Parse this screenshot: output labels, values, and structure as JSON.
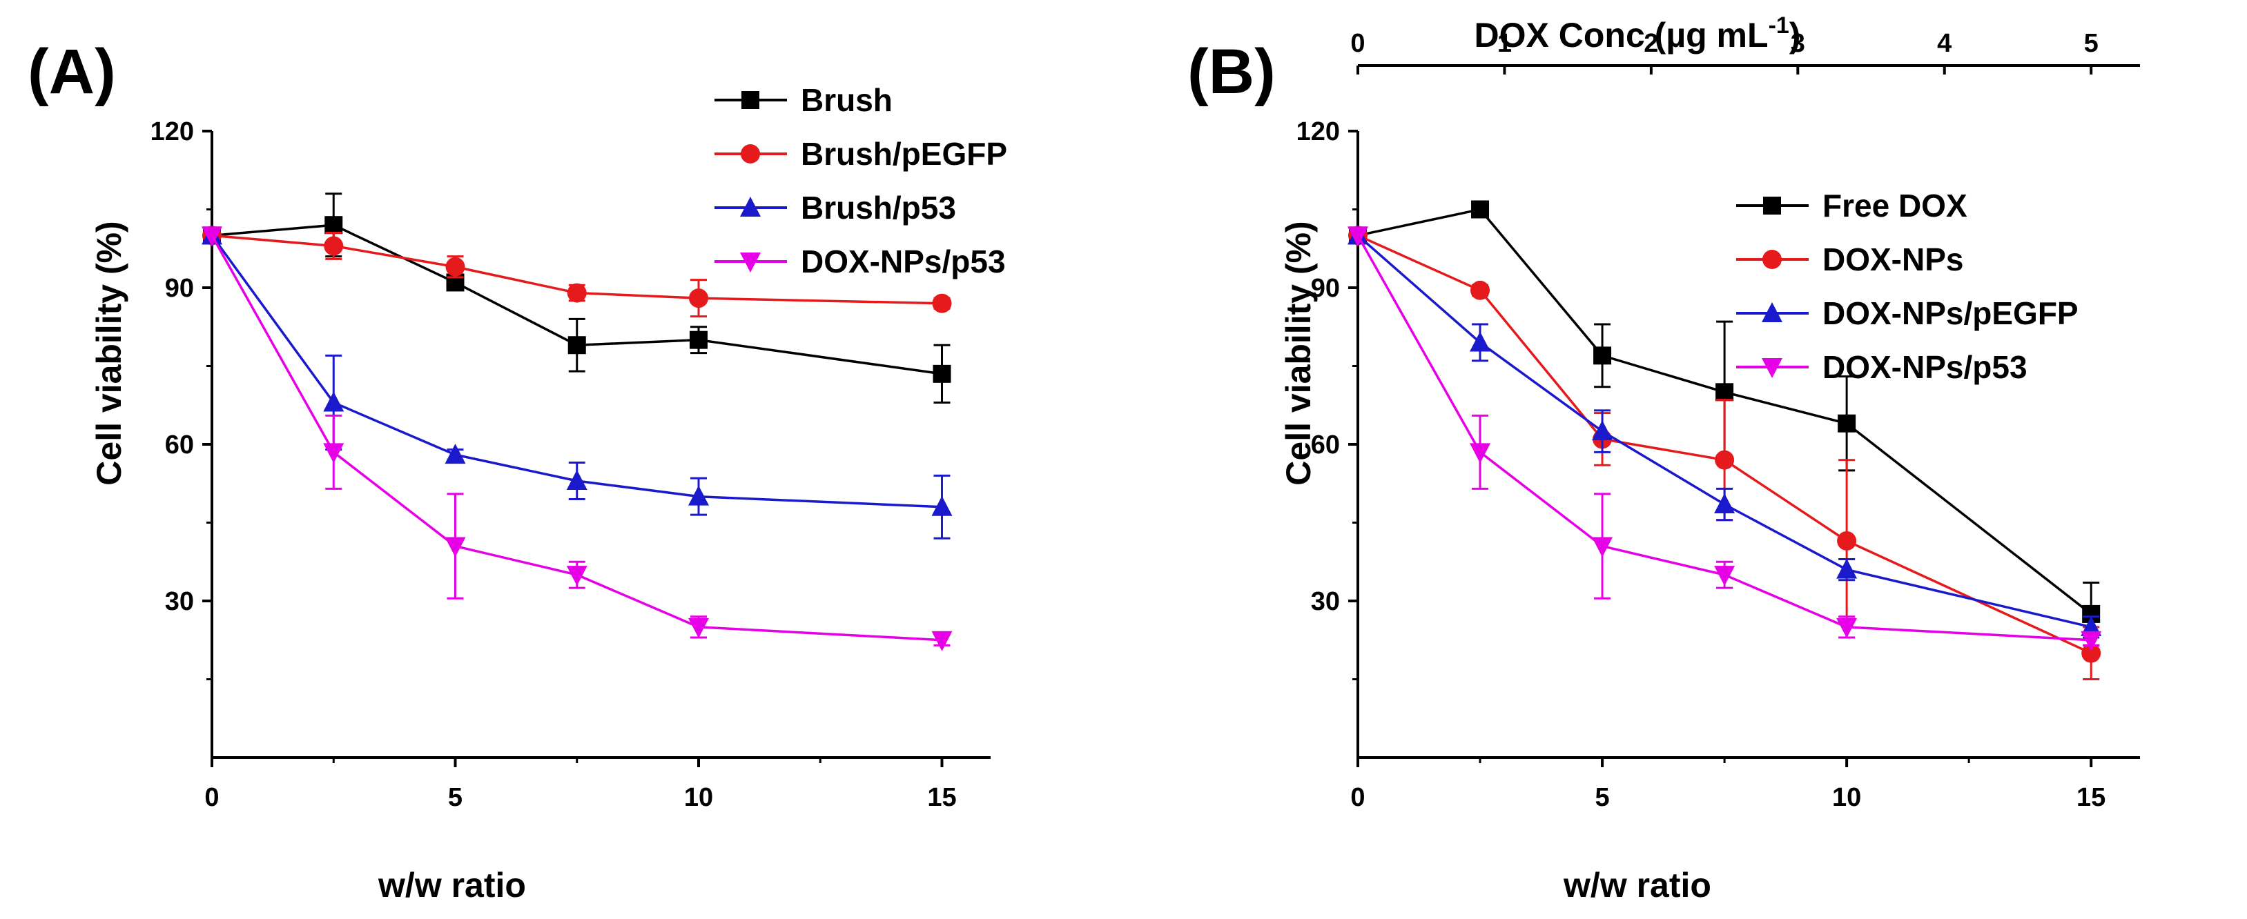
{
  "chart_data": [
    {
      "id": "A",
      "panel_label": "(A)",
      "type": "line",
      "xlabel": "w/w ratio",
      "ylabel": "Cell viability (%)",
      "xlim": [
        0,
        16
      ],
      "ylim": [
        0,
        120
      ],
      "xticks": [
        "0",
        "5",
        "10",
        "15"
      ],
      "xtick_values": [
        0,
        5,
        10,
        15
      ],
      "yticks": [
        "30",
        "60",
        "90",
        "120"
      ],
      "ytick_values": [
        30,
        60,
        90,
        120
      ],
      "legend_position": "top-right",
      "series": [
        {
          "name": "Brush",
          "color": "#000000",
          "marker": "square",
          "x": [
            0,
            2.5,
            5,
            7.5,
            10,
            15
          ],
          "y": [
            100,
            102,
            91,
            79,
            80,
            73.5
          ],
          "err": [
            0,
            6,
            1,
            5,
            2.5,
            5.5
          ]
        },
        {
          "name": "Brush/pEGFP",
          "color": "#e41a1c",
          "marker": "circle",
          "x": [
            0,
            2.5,
            5,
            7.5,
            10,
            15
          ],
          "y": [
            100,
            98,
            94,
            89,
            88,
            87
          ],
          "err": [
            0,
            2.5,
            2,
            1.5,
            3.5,
            1
          ]
        },
        {
          "name": "Brush/p53",
          "color": "#1a1acc",
          "marker": "triangle-up",
          "x": [
            0,
            2.5,
            5,
            7.5,
            10,
            15
          ],
          "y": [
            100,
            68,
            58,
            53,
            50,
            48
          ],
          "err": [
            0,
            9,
            1,
            3.5,
            3.5,
            6
          ]
        },
        {
          "name": "DOX-NPs/p53",
          "color": "#e600e6",
          "marker": "triangle-down",
          "x": [
            0,
            2.5,
            5,
            7.5,
            10,
            15
          ],
          "y": [
            100,
            58.5,
            40.5,
            35,
            25,
            22.5
          ],
          "err": [
            0,
            7,
            10,
            2.5,
            2,
            1
          ]
        }
      ]
    },
    {
      "id": "B",
      "panel_label": "(B)",
      "type": "line",
      "xlabel": "w/w ratio",
      "ylabel": "Cell viability (%)",
      "top_xlabel": "DOX Conc (µg mL",
      "top_xlabel_sup": "-1",
      "top_xlabel_end": ")",
      "top_xticks": [
        "0",
        "1",
        "2",
        "3",
        "4",
        "5"
      ],
      "top_xtick_values": [
        0,
        1,
        2,
        3,
        4,
        5
      ],
      "xlim": [
        0,
        16
      ],
      "ylim": [
        0,
        120
      ],
      "xticks": [
        "0",
        "5",
        "10",
        "15"
      ],
      "xtick_values": [
        0,
        5,
        10,
        15
      ],
      "yticks": [
        "30",
        "60",
        "90",
        "120"
      ],
      "ytick_values": [
        30,
        60,
        90,
        120
      ],
      "legend_position": "top-right",
      "series": [
        {
          "name": "Free DOX",
          "color": "#000000",
          "marker": "square",
          "x": [
            0,
            2.5,
            5,
            7.5,
            10,
            15
          ],
          "y": [
            100,
            105,
            77,
            70,
            64,
            27.5
          ],
          "err": [
            0,
            1.5,
            6,
            13.5,
            9,
            6
          ]
        },
        {
          "name": "DOX-NPs",
          "color": "#e41a1c",
          "marker": "circle",
          "x": [
            0,
            2.5,
            5,
            7.5,
            10,
            15
          ],
          "y": [
            100,
            89.5,
            61,
            57,
            41.5,
            20
          ],
          "err": [
            0,
            1,
            5,
            11.5,
            15.5,
            5
          ]
        },
        {
          "name": "DOX-NPs/pEGFP",
          "color": "#1a1acc",
          "marker": "triangle-up",
          "x": [
            0,
            2.5,
            5,
            7.5,
            10,
            15
          ],
          "y": [
            100,
            79.5,
            62.5,
            48.5,
            36,
            25
          ],
          "err": [
            0,
            3.5,
            4,
            3,
            2,
            2
          ]
        },
        {
          "name": "DOX-NPs/p53",
          "color": "#e600e6",
          "marker": "triangle-down",
          "x": [
            0,
            2.5,
            5,
            7.5,
            10,
            15
          ],
          "y": [
            100,
            58.5,
            40.5,
            35,
            25,
            22.5
          ],
          "err": [
            0,
            7,
            10,
            2.5,
            2,
            1
          ]
        }
      ]
    }
  ]
}
